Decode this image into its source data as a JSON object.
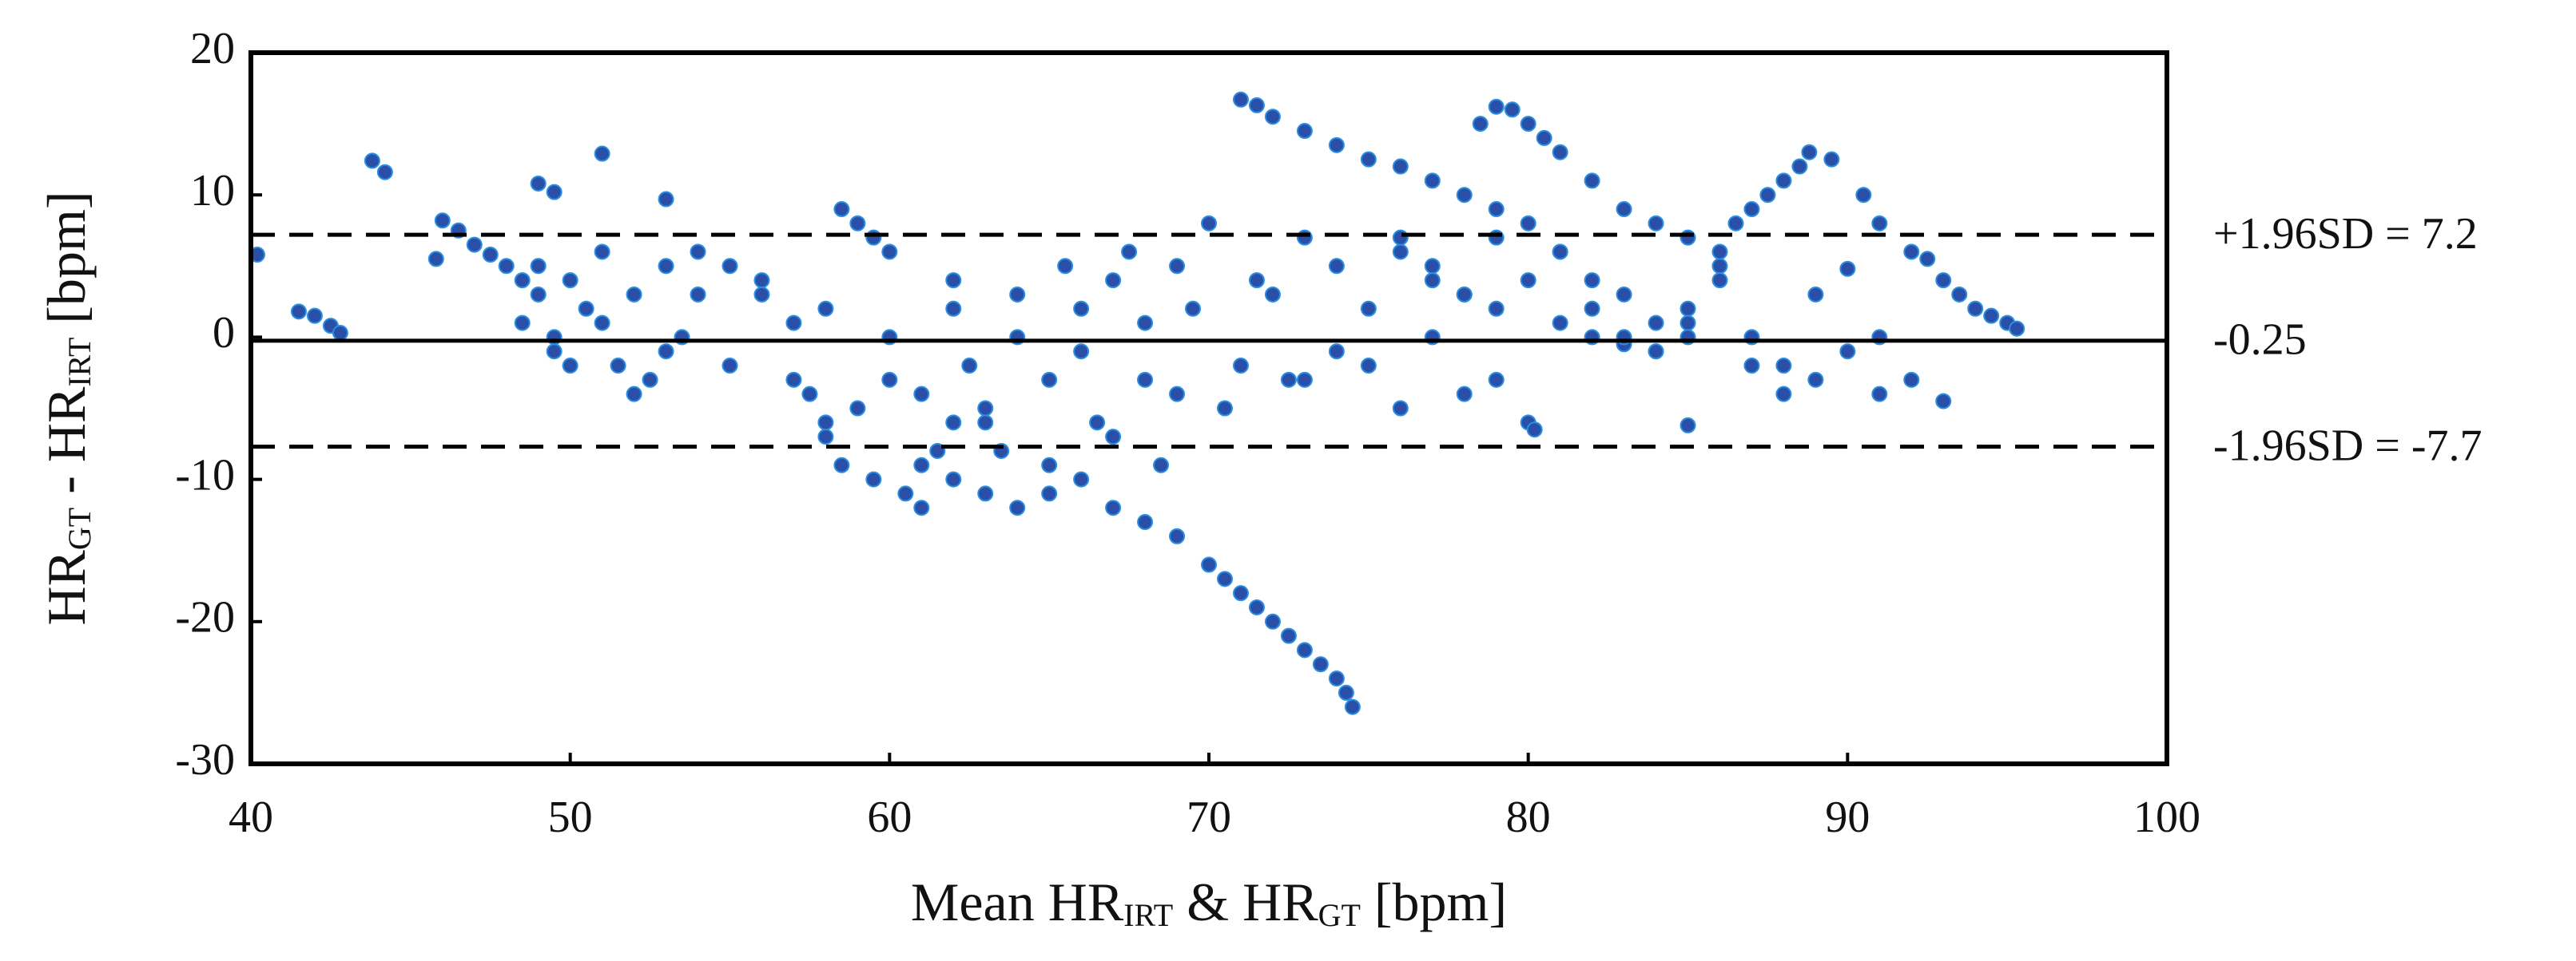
{
  "chart_data": {
    "type": "scatter",
    "xlabel": [
      "Mean HR",
      "IRT",
      " & HR",
      "GT",
      " [bpm]"
    ],
    "ylabel": [
      "HR",
      "GT",
      " - HR",
      "IRT",
      " [bpm]"
    ],
    "xlim": [
      40,
      100
    ],
    "xticks": [
      40,
      50,
      60,
      70,
      80,
      90,
      100
    ],
    "ylim": [
      -30,
      20
    ],
    "yticks": [
      20,
      10,
      0,
      -10,
      -20,
      -30
    ],
    "hlines": [
      {
        "value": 7.2,
        "label": "+1.96SD = 7.2",
        "style": "dashed"
      },
      {
        "value": -0.25,
        "label": "-0.25",
        "style": "solid"
      },
      {
        "value": -7.7,
        "label": "-1.96SD = -7.7",
        "style": "dashed"
      }
    ],
    "color": "#2a4fa8",
    "x": [
      40.2,
      41.5,
      42,
      42.5,
      42.8,
      43.8,
      44.2,
      45.8,
      46,
      46.5,
      47,
      47.5,
      48,
      48.5,
      49,
      49,
      49.5,
      51,
      53,
      48.5,
      49,
      49.5,
      50,
      50.5,
      51,
      51.5,
      52,
      52.5,
      53,
      53.5,
      49.5,
      50,
      51,
      52,
      53,
      54,
      55,
      56,
      57,
      58,
      54,
      55,
      56,
      57,
      57.5,
      58,
      58.5,
      59,
      59.5,
      60,
      58,
      58.5,
      59,
      59.5,
      60,
      60.5,
      61,
      61.5,
      62,
      62.5,
      60,
      61,
      62,
      63,
      64,
      65,
      66,
      67,
      68,
      69,
      61,
      62,
      63,
      64,
      65,
      66,
      67,
      68,
      69,
      70,
      70.5,
      71,
      71.5,
      72,
      72.5,
      73,
      73.5,
      74,
      74.3,
      74.5,
      63,
      64,
      65,
      66,
      67,
      68,
      69,
      70,
      71,
      72,
      62,
      63.5,
      65.5,
      66.5,
      67.5,
      68.5,
      69.5,
      70.5,
      71.5,
      72.5,
      71,
      71.5,
      72,
      73,
      74,
      75,
      76,
      77,
      78,
      79,
      80,
      81,
      82,
      73,
      74,
      75,
      76,
      77,
      78,
      79,
      78.5,
      79,
      79.5,
      80,
      80.5,
      81,
      82,
      83,
      84,
      85,
      73,
      74,
      75,
      76,
      77,
      78,
      79,
      80,
      80.2,
      81,
      82,
      83,
      84,
      85,
      86,
      87,
      88,
      89,
      90,
      91,
      85,
      86,
      86.5,
      87,
      87.5,
      88,
      88.5,
      88.8,
      89.5,
      90.5,
      90,
      91,
      92,
      92.5,
      93,
      93.5,
      94,
      94.5,
      95,
      95.3,
      91,
      92,
      93,
      89,
      88,
      87,
      86,
      85,
      84,
      83,
      76,
      77,
      78,
      79,
      80,
      81,
      82,
      83,
      84,
      85
    ],
    "y": [
      5.8,
      1.8,
      1.5,
      0.8,
      0.3,
      12.4,
      11.6,
      5.5,
      8.2,
      7.5,
      6.5,
      5.8,
      5,
      4,
      3,
      10.8,
      10.2,
      12.9,
      9.7,
      1,
      5,
      -1,
      4,
      2,
      6,
      -2,
      3,
      -3,
      5,
      0,
      0,
      -2,
      1,
      -4,
      -1,
      3,
      -2,
      4,
      -3,
      2,
      6,
      5,
      3,
      1,
      -4,
      -6,
      9,
      8,
      7,
      6,
      -7,
      -9,
      -5,
      -10,
      -3,
      -11,
      -12,
      -8,
      -6,
      -2,
      0,
      -4,
      2,
      -6,
      3,
      -9,
      -1,
      4,
      -3,
      5,
      -9,
      -10,
      -11,
      -12,
      -11,
      -10,
      -12,
      -13,
      -14,
      -16,
      -17,
      -18,
      -19,
      -20,
      -21,
      -22,
      -23,
      -24,
      -25,
      -26,
      -5,
      0,
      -3,
      2,
      -7,
      1,
      -4,
      8,
      -2,
      3,
      4,
      -8,
      5,
      -6,
      6,
      -9,
      2,
      -5,
      4,
      -3,
      16.7,
      16.3,
      15.5,
      14.5,
      13.5,
      12.5,
      12,
      11,
      10,
      9,
      8,
      6,
      4,
      7,
      5,
      -2,
      6,
      4,
      -4,
      7,
      15,
      16.2,
      16,
      15,
      14,
      13,
      11,
      9,
      8,
      7,
      -3,
      -1,
      2,
      -5,
      0,
      3,
      -3,
      -6,
      -6.5,
      1,
      0,
      3,
      -1,
      -6.2,
      5,
      0,
      -2,
      3,
      -1,
      -4,
      2,
      6,
      8,
      9,
      10,
      11,
      12,
      13,
      12.5,
      10,
      4.8,
      8,
      6,
      5.5,
      4,
      3,
      2,
      1.5,
      1,
      0.6,
      0,
      -3,
      -4.5,
      -3,
      -4,
      -2,
      4,
      1,
      1,
      -0.5,
      7,
      5,
      3,
      2,
      4,
      6,
      2,
      0,
      -1,
      0
    ]
  }
}
